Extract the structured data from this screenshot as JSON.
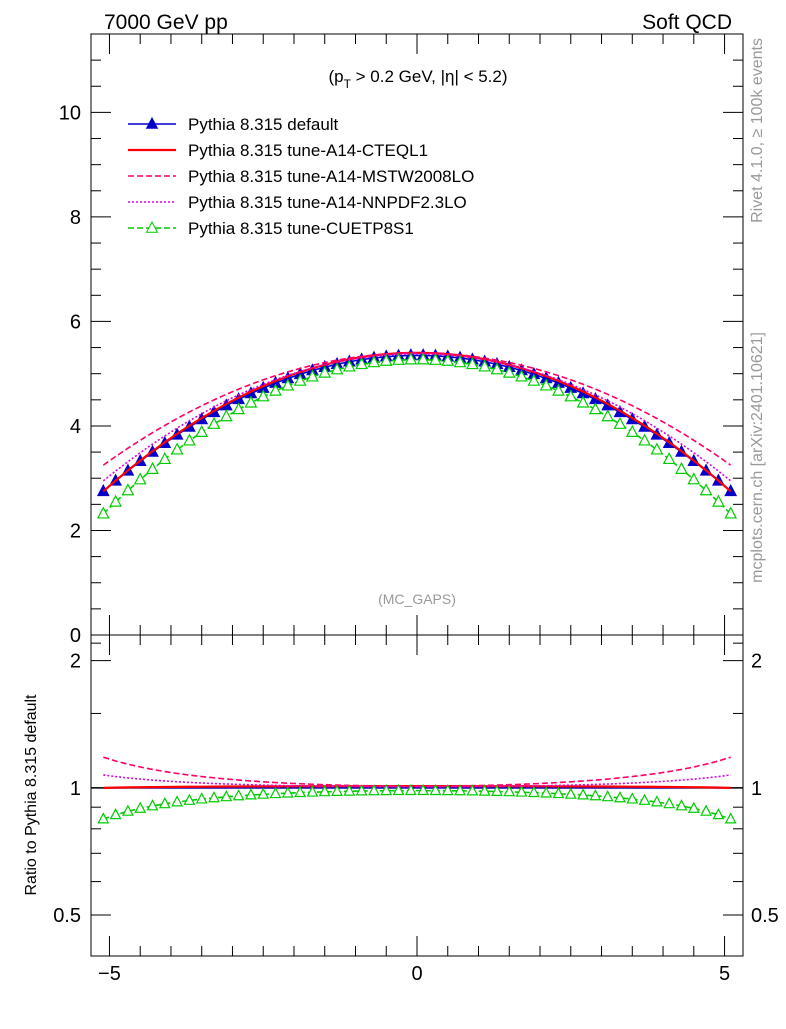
{
  "header": {
    "left": "7000 GeV pp",
    "right": "Soft QCD"
  },
  "side_labels": {
    "rivet": "Rivet 4.1.0, ≥ 100k events",
    "mcplots": "mcplots.cern.ch [arXiv:2401.10621]"
  },
  "colors": {
    "default": "#0000cc",
    "cteql1": "#ff0000",
    "mstw": "#ff0066",
    "nnpdf": "#e000e0",
    "cuetp": "#00cc00",
    "axis": "#000000",
    "watermark": "#999999"
  },
  "chart_data": [
    {
      "type": "line",
      "panel": "main",
      "annotation": {
        "prefix": "(p",
        "sub": "T",
        "suffix": " > 0.2 GeV, |η| < 5.2)"
      },
      "watermark": "(MC_GAPS)",
      "xlim": [
        -5.3,
        5.3
      ],
      "ylim": [
        0,
        11.5
      ],
      "y_ticks": [
        0,
        2,
        4,
        6,
        8,
        10
      ],
      "y_tick_labels": [
        "0",
        "2",
        "4",
        "6",
        "8",
        "10"
      ],
      "legend_position": "top-left",
      "x_description": "eta bin centres from -5.1 to 5.1 in steps of 0.2 (52 points)",
      "series": [
        {
          "key": "default",
          "name": "Pythia 8.315 default",
          "y0": 5.35,
          "y_edge": 2.75,
          "marker": "filled-triangle",
          "line": "solid"
        },
        {
          "key": "cteql1",
          "name": "Pythia 8.315 tune-A14-CTEQL1",
          "y0": 5.4,
          "y_edge": 2.75,
          "marker": "none",
          "line": "solid"
        },
        {
          "key": "mstw",
          "name": "Pythia 8.315 tune-A14-MSTW2008LO",
          "y0": 5.4,
          "y_edge": 3.25,
          "marker": "none",
          "line": "dashed"
        },
        {
          "key": "nnpdf",
          "name": "Pythia 8.315 tune-A14-NNPDF2.3LO",
          "y0": 5.38,
          "y_edge": 2.95,
          "marker": "none",
          "line": "dotted"
        },
        {
          "key": "cuetp",
          "name": "Pythia 8.315 tune-CUETP8S1",
          "y0": 5.27,
          "y_edge": 2.32,
          "marker": "open-triangle",
          "line": "dashed"
        }
      ]
    },
    {
      "type": "line",
      "panel": "ratio",
      "ylabel": "Ratio to Pythia 8.315 default",
      "xlim": [
        -5.3,
        5.3
      ],
      "ylim_log": [
        0.4,
        2.3
      ],
      "y_ticks": [
        0.5,
        1,
        2
      ],
      "y_tick_labels": [
        "0.5",
        "1",
        "2"
      ],
      "x_ticks": [
        -5,
        0,
        5
      ],
      "x_tick_labels": [
        "−5",
        "0",
        "5"
      ]
    }
  ]
}
